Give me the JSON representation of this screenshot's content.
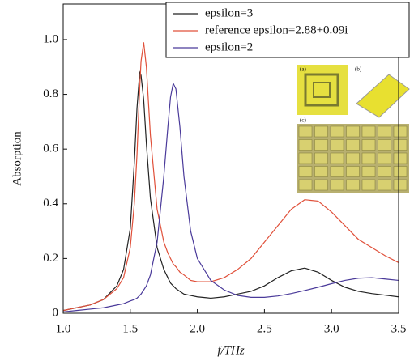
{
  "chart_data": {
    "type": "line",
    "x_label": "f/THz",
    "y_label": "Absorption",
    "x": [
      1.0,
      1.1,
      1.2,
      1.3,
      1.4,
      1.45,
      1.5,
      1.53,
      1.55,
      1.57,
      1.58,
      1.6,
      1.62,
      1.65,
      1.7,
      1.75,
      1.78,
      1.8,
      1.82,
      1.84,
      1.87,
      1.9,
      1.95,
      2.0,
      2.1,
      2.2,
      2.3,
      2.4,
      2.5,
      2.6,
      2.7,
      2.8,
      2.9,
      3.0,
      3.1,
      3.2,
      3.3,
      3.4,
      3.5
    ],
    "series": [
      {
        "name": "epsilon=3",
        "color": "#222222",
        "values": [
          0.01,
          0.02,
          0.03,
          0.05,
          0.1,
          0.16,
          0.31,
          0.55,
          0.75,
          0.88,
          0.87,
          0.78,
          0.62,
          0.42,
          0.24,
          0.16,
          0.13,
          0.11,
          0.1,
          0.09,
          0.08,
          0.07,
          0.065,
          0.06,
          0.055,
          0.06,
          0.07,
          0.08,
          0.1,
          0.13,
          0.155,
          0.165,
          0.15,
          0.12,
          0.095,
          0.08,
          0.072,
          0.066,
          0.06
        ]
      },
      {
        "name": "reference epsilon=2.88+0.09i",
        "color": "#e0503a",
        "values": [
          0.01,
          0.02,
          0.03,
          0.05,
          0.09,
          0.13,
          0.24,
          0.4,
          0.58,
          0.82,
          0.92,
          0.99,
          0.9,
          0.65,
          0.38,
          0.26,
          0.22,
          0.2,
          0.18,
          0.17,
          0.15,
          0.14,
          0.12,
          0.115,
          0.115,
          0.13,
          0.16,
          0.2,
          0.26,
          0.32,
          0.38,
          0.415,
          0.41,
          0.37,
          0.32,
          0.27,
          0.24,
          0.21,
          0.185
        ]
      },
      {
        "name": "epsilon=2",
        "color": "#4a3a9a",
        "values": [
          0.005,
          0.01,
          0.015,
          0.02,
          0.03,
          0.035,
          0.045,
          0.05,
          0.055,
          0.065,
          0.07,
          0.085,
          0.1,
          0.14,
          0.26,
          0.5,
          0.68,
          0.79,
          0.84,
          0.82,
          0.68,
          0.5,
          0.3,
          0.2,
          0.12,
          0.085,
          0.065,
          0.058,
          0.058,
          0.063,
          0.072,
          0.083,
          0.095,
          0.108,
          0.12,
          0.128,
          0.13,
          0.125,
          0.12
        ]
      }
    ],
    "xlim": [
      1.0,
      3.5
    ],
    "xticks": [
      {
        "value": 1,
        "label": "1.0"
      },
      1.5,
      {
        "value": 2,
        "label": "2.0"
      },
      2.5,
      {
        "value": 3,
        "label": "3.0"
      },
      3.5
    ],
    "ylim": [
      0,
      1.13
    ],
    "yticks": [
      0,
      0.2,
      0.4,
      0.6,
      0.8,
      {
        "value": 1,
        "label": "1.0"
      }
    ],
    "legend_position": "top-right",
    "inset_labels": [
      "(a)",
      "(b)",
      "(c)"
    ]
  }
}
